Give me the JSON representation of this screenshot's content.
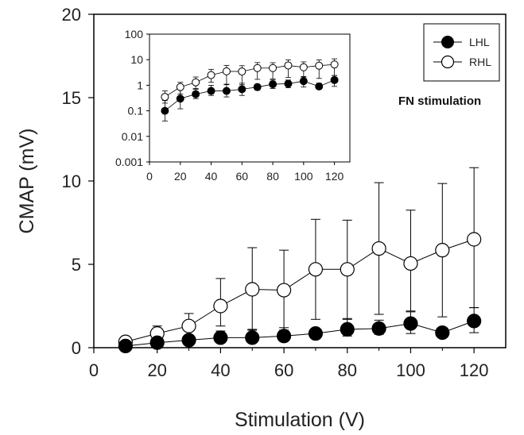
{
  "chart_data": [
    {
      "type": "line",
      "xlabel": "Stimulation (V)",
      "ylabel": "CMAP (mV)",
      "xlim": [
        0,
        130
      ],
      "ylim": [
        0,
        20
      ],
      "xticks": [
        0,
        20,
        40,
        60,
        80,
        100,
        120
      ],
      "yticks": [
        0,
        5,
        10,
        15,
        20
      ],
      "x": [
        10,
        20,
        30,
        40,
        50,
        60,
        70,
        80,
        90,
        100,
        110,
        120
      ],
      "series": [
        {
          "name": "LHL",
          "marker": "filled-circle",
          "color": "#000000",
          "values": [
            0.1,
            0.3,
            0.45,
            0.6,
            0.6,
            0.7,
            0.85,
            1.1,
            1.15,
            1.45,
            0.9,
            1.6
          ],
          "err_upper": [
            0.2,
            0.4,
            0.25,
            0.4,
            0.5,
            0.5,
            0.3,
            0.6,
            0.5,
            0.7,
            0.3,
            0.8
          ],
          "err_lower": [
            0.1,
            0.2,
            0.15,
            0.2,
            0.3,
            0.3,
            0.2,
            0.4,
            0.35,
            0.6,
            0.2,
            0.7
          ]
        },
        {
          "name": "RHL",
          "marker": "open-circle",
          "color": "#000000",
          "values": [
            0.35,
            0.85,
            1.3,
            2.5,
            3.5,
            3.45,
            4.7,
            4.7,
            5.95,
            5.05,
            5.85,
            6.5
          ],
          "err_upper": [
            0.2,
            0.45,
            0.75,
            1.65,
            2.5,
            2.4,
            3.0,
            2.95,
            3.95,
            3.2,
            4.0,
            4.3
          ],
          "err_lower": [
            0.15,
            0.4,
            0.6,
            1.2,
            2.45,
            2.4,
            3.0,
            2.95,
            3.95,
            2.85,
            4.0,
            4.1
          ]
        }
      ],
      "legend": {
        "position": "top-right",
        "entries": [
          "LHL",
          "RHL"
        ]
      },
      "annotation": "FN stimulation"
    },
    {
      "type": "line",
      "role": "inset",
      "yscale": "log",
      "xlim": [
        0,
        130
      ],
      "ylim": [
        0.001,
        100
      ],
      "xticks": [
        0,
        20,
        40,
        60,
        80,
        100,
        120
      ],
      "yticks": [
        0.001,
        0.01,
        0.1,
        1,
        10,
        100
      ],
      "ytick_labels": [
        "0.001",
        "0.01",
        "0.1",
        "1",
        "10",
        "100"
      ],
      "x": [
        10,
        20,
        30,
        40,
        50,
        60,
        70,
        80,
        90,
        100,
        110,
        120
      ],
      "series": [
        {
          "name": "LHL",
          "marker": "filled-circle",
          "values": [
            0.1,
            0.3,
            0.45,
            0.6,
            0.6,
            0.7,
            0.85,
            1.1,
            1.15,
            1.45,
            0.9,
            1.6
          ],
          "err_hi": [
            0.25,
            0.7,
            0.75,
            1.0,
            1.1,
            1.2,
            1.1,
            1.6,
            1.6,
            2.1,
            1.2,
            2.4
          ],
          "err_lo": [
            0.04,
            0.12,
            0.3,
            0.4,
            0.35,
            0.4,
            0.65,
            0.75,
            0.8,
            0.85,
            0.7,
            0.9
          ]
        },
        {
          "name": "RHL",
          "marker": "open-circle",
          "values": [
            0.35,
            0.85,
            1.3,
            2.5,
            3.5,
            3.45,
            4.7,
            4.7,
            5.95,
            5.05,
            5.85,
            6.5
          ],
          "err_hi": [
            0.6,
            1.3,
            2.1,
            4.2,
            6.0,
            5.8,
            7.7,
            7.6,
            9.9,
            8.2,
            9.8,
            10.8
          ],
          "err_lo": [
            0.2,
            0.45,
            0.7,
            1.3,
            1.05,
            1.05,
            1.7,
            1.75,
            2.0,
            2.2,
            1.85,
            2.4
          ]
        }
      ]
    }
  ]
}
